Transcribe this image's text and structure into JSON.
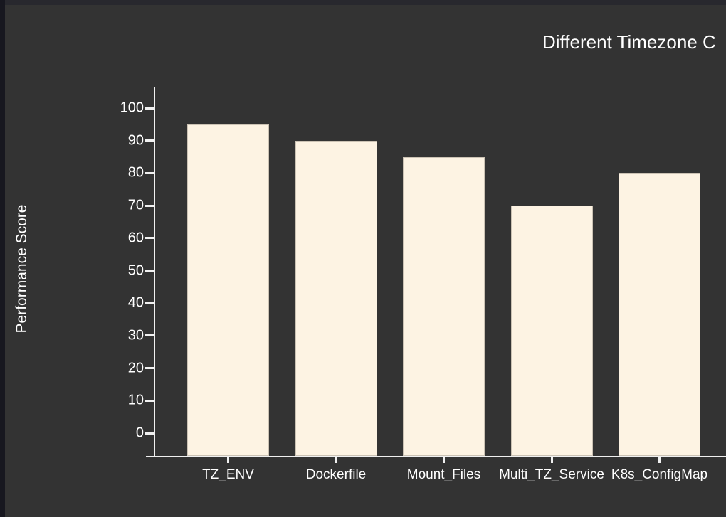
{
  "title": "Different Timezone C",
  "chart_data": {
    "type": "bar",
    "title": "Different Timezone C",
    "categories": [
      "TZ_ENV",
      "Dockerfile",
      "Mount_Files",
      "Multi_TZ_Service",
      "K8s_ConfigMap"
    ],
    "values": [
      95,
      90,
      85,
      70,
      80
    ],
    "xlabel": "",
    "ylabel": "Performance Score",
    "ylim": [
      0,
      100
    ],
    "ytick_step": 10,
    "yticks": [
      0,
      10,
      20,
      30,
      40,
      50,
      60,
      70,
      80,
      90,
      100
    ],
    "grid": false,
    "legend": "none",
    "bar_color": "#fdf3e3",
    "axis_color": "#f0f0f0",
    "text_color": "#ffffff",
    "background_color": "#333333",
    "left_strip_color": "#17171f",
    "top_strip_color": "#28282e"
  }
}
